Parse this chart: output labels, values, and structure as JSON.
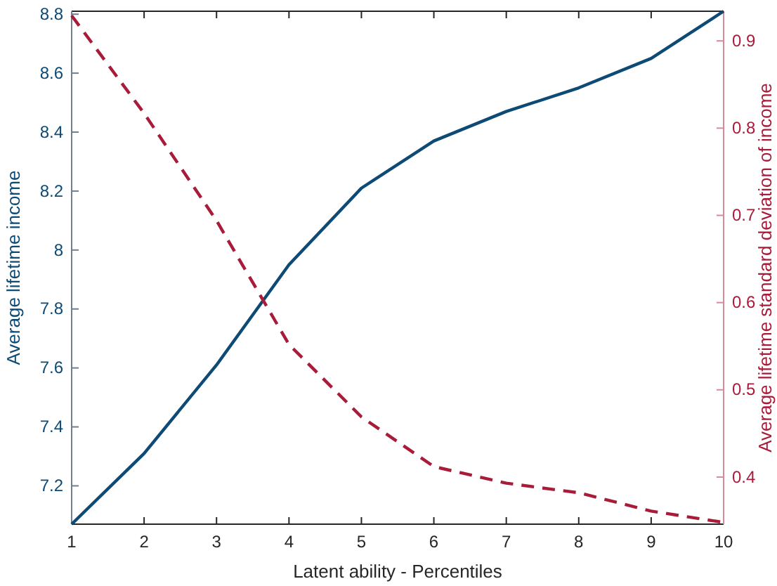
{
  "chart_data": {
    "type": "line",
    "xlabel": "Latent ability - Percentiles",
    "ylabel": "Average lifetime income",
    "y2label": "Average lifetime standard deviation of income",
    "x": [
      1,
      2,
      3,
      4,
      5,
      6,
      7,
      8,
      9,
      10
    ],
    "series": [
      {
        "color": "#0d4a75",
        "values": [
          7.07,
          7.31,
          7.61,
          7.95,
          8.21,
          8.37,
          8.47,
          8.55,
          8.65,
          8.81
        ],
        "line_style": "solid"
      },
      {
        "color": "#a81c3a",
        "axis": "y2",
        "values": [
          0.929,
          0.817,
          0.694,
          0.552,
          0.469,
          0.412,
          0.393,
          0.382,
          0.361,
          0.348
        ],
        "line_style": "dashed"
      }
    ],
    "xlim": [
      1,
      10
    ],
    "xticks": [
      1,
      2,
      3,
      4,
      5,
      6,
      7,
      8,
      9,
      10
    ],
    "ylim": [
      7.07,
      8.81
    ],
    "yticks": [
      7.2,
      7.4,
      7.6,
      7.8,
      8,
      8.2,
      8.4,
      8.6,
      8.8
    ],
    "y2lim": [
      0.346,
      0.934
    ],
    "y2ticks": [
      0.4,
      0.5,
      0.6,
      0.7,
      0.8,
      0.9
    ],
    "grid": false
  }
}
